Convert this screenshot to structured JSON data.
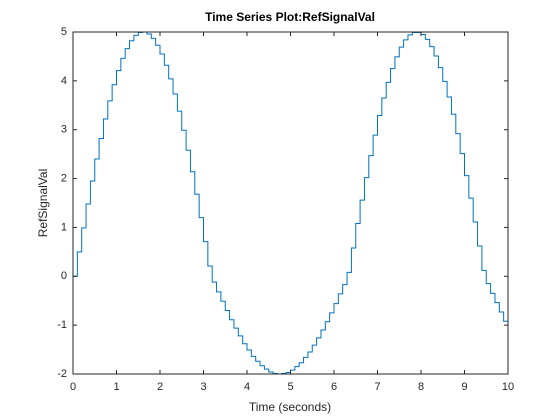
{
  "chart_data": {
    "type": "stairs",
    "title": "Time Series Plot:RefSignalVal",
    "xlabel": "Time (seconds)",
    "ylabel": "RefSignalVal",
    "xlim": [
      0,
      10
    ],
    "ylim": [
      -2,
      5
    ],
    "xticks": [
      0,
      1,
      2,
      3,
      4,
      5,
      6,
      7,
      8,
      9,
      10
    ],
    "yticks": [
      -2,
      -1,
      0,
      1,
      2,
      3,
      4,
      5
    ],
    "series": [
      {
        "name": "RefSignalVal",
        "color": "#0072bd",
        "x": [
          0,
          0.1,
          0.2,
          0.3,
          0.4,
          0.5,
          0.6,
          0.7,
          0.8,
          0.9,
          1,
          1.1,
          1.2,
          1.3,
          1.4,
          1.5,
          1.6,
          1.7,
          1.8,
          1.9,
          2,
          2.1,
          2.2,
          2.3,
          2.4,
          2.5,
          2.6,
          2.7,
          2.8,
          2.9,
          3,
          3.1,
          3.2,
          3.3,
          3.4,
          3.5,
          3.6,
          3.7,
          3.8,
          3.9,
          4,
          4.1,
          4.2,
          4.3,
          4.4,
          4.5,
          4.6,
          4.7,
          4.8,
          4.9,
          5,
          5.1,
          5.2,
          5.3,
          5.4,
          5.5,
          5.6,
          5.7,
          5.8,
          5.9,
          6,
          6.1,
          6.2,
          6.3,
          6.4,
          6.5,
          6.6,
          6.7,
          6.8,
          6.9,
          7,
          7.1,
          7.2,
          7.3,
          7.4,
          7.5,
          7.6,
          7.7,
          7.8,
          7.9,
          8,
          8.1,
          8.2,
          8.3,
          8.4,
          8.5,
          8.6,
          8.7,
          8.8,
          8.9,
          9,
          9.1,
          9.2,
          9.3,
          9.4,
          9.5,
          9.6,
          9.7,
          9.8,
          9.9,
          10
        ],
        "values": [
          0,
          0.5,
          0.99,
          1.48,
          1.95,
          2.4,
          2.82,
          3.22,
          3.59,
          3.92,
          4.21,
          4.46,
          4.66,
          4.82,
          4.93,
          4.99,
          5.0,
          4.96,
          4.87,
          4.73,
          4.55,
          4.32,
          4.04,
          3.73,
          3.38,
          2.99,
          2.58,
          2.14,
          1.68,
          1.2,
          0.71,
          0.21,
          -0.12,
          -0.32,
          -0.51,
          -0.7,
          -0.89,
          -1.06,
          -1.22,
          -1.38,
          -1.51,
          -1.64,
          -1.74,
          -1.83,
          -1.9,
          -1.96,
          -1.99,
          -2.0,
          -1.99,
          -1.97,
          -1.92,
          -1.85,
          -1.77,
          -1.66,
          -1.55,
          -1.41,
          -1.26,
          -1.1,
          -0.93,
          -0.75,
          -0.56,
          -0.36,
          -0.17,
          0.08,
          0.58,
          1.08,
          1.56,
          2.02,
          2.47,
          2.89,
          3.29,
          3.65,
          3.97,
          4.25,
          4.49,
          4.69,
          4.84,
          4.94,
          4.99,
          4.99,
          4.95,
          4.85,
          4.7,
          4.51,
          4.27,
          3.99,
          3.67,
          3.32,
          2.92,
          2.51,
          2.06,
          1.6,
          1.11,
          0.62,
          0.12,
          -0.15,
          -0.35,
          -0.54,
          -0.73,
          -0.92,
          -1.09
        ]
      }
    ]
  }
}
